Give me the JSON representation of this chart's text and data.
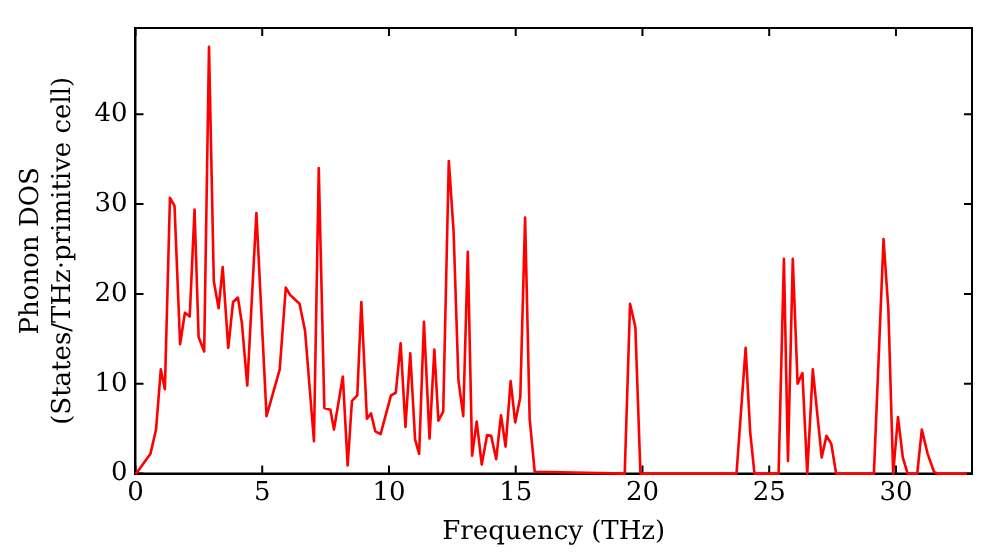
{
  "chart_data": {
    "type": "line",
    "xlabel": "Frequency (THz)",
    "ylabel": "Phonon DOS\n(States/THz·primitive cell)",
    "xlim": [
      0,
      33.0
    ],
    "ylim": [
      0,
      49.6
    ],
    "xticks": [
      0,
      5,
      10,
      15,
      20,
      25,
      30
    ],
    "yticks": [
      0,
      10,
      20,
      30,
      40
    ],
    "grid": false,
    "legend": false,
    "marker": "none",
    "line_style": "solid",
    "series": [
      {
        "color": "#ff0000",
        "x": [
          0,
          0.05,
          0.59,
          0.81,
          1.0,
          1.16,
          1.36,
          1.54,
          1.76,
          1.95,
          2.14,
          2.33,
          2.49,
          2.71,
          2.9,
          3.09,
          3.28,
          3.44,
          3.66,
          3.85,
          4.04,
          4.2,
          4.41,
          4.77,
          5.17,
          5.69,
          5.93,
          6.1,
          6.47,
          6.69,
          7.04,
          7.23,
          7.45,
          7.69,
          7.83,
          8.18,
          8.37,
          8.54,
          8.75,
          8.91,
          9.13,
          9.29,
          9.46,
          9.67,
          10.08,
          10.27,
          10.46,
          10.65,
          10.84,
          11.03,
          11.19,
          11.38,
          11.6,
          11.79,
          11.95,
          12.14,
          12.36,
          12.55,
          12.74,
          12.93,
          13.11,
          13.28,
          13.46,
          13.66,
          13.87,
          14.03,
          14.23,
          14.42,
          14.6,
          14.8,
          14.98,
          15.18,
          15.37,
          15.55,
          15.75,
          19.3,
          19.51,
          19.72,
          19.92,
          23.71,
          24.07,
          24.25,
          24.42,
          25.37,
          25.58,
          25.74,
          25.93,
          26.12,
          26.31,
          26.5,
          26.72,
          27.07,
          27.26,
          27.45,
          27.64,
          29.13,
          29.51,
          29.7,
          29.89,
          30.08,
          30.27,
          30.46,
          30.84,
          31.02,
          31.25,
          31.5,
          31.65,
          32.8
        ],
        "values": [
          0,
          0.1,
          2.2,
          4.9,
          11.6,
          9.4,
          30.7,
          29.8,
          14.4,
          17.9,
          17.5,
          29.4,
          15.2,
          13.6,
          47.5,
          21.4,
          18.4,
          23.0,
          14.0,
          19.1,
          19.6,
          16.7,
          9.8,
          29.0,
          6.4,
          11.6,
          20.7,
          19.9,
          18.9,
          15.9,
          3.6,
          34.0,
          7.3,
          7.1,
          4.9,
          10.8,
          0.9,
          8.1,
          8.7,
          19.1,
          6.1,
          6.7,
          4.7,
          4.4,
          8.7,
          9.0,
          14.5,
          5.2,
          13.4,
          3.8,
          2.2,
          16.9,
          3.9,
          13.8,
          5.9,
          6.9,
          34.8,
          26.9,
          10.4,
          6.4,
          24.7,
          2.0,
          5.8,
          1.0,
          4.3,
          4.2,
          1.6,
          6.5,
          3.0,
          10.3,
          5.7,
          8.5,
          28.5,
          6.1,
          0.2,
          0,
          18.9,
          16.3,
          0,
          0,
          14.0,
          4.6,
          0,
          0,
          23.9,
          1.4,
          23.9,
          10.0,
          11.2,
          0,
          11.6,
          1.8,
          4.2,
          3.3,
          0,
          0,
          26.1,
          18.3,
          0,
          6.3,
          1.8,
          0,
          0,
          4.9,
          2.2,
          0.2,
          0,
          0
        ]
      }
    ]
  }
}
